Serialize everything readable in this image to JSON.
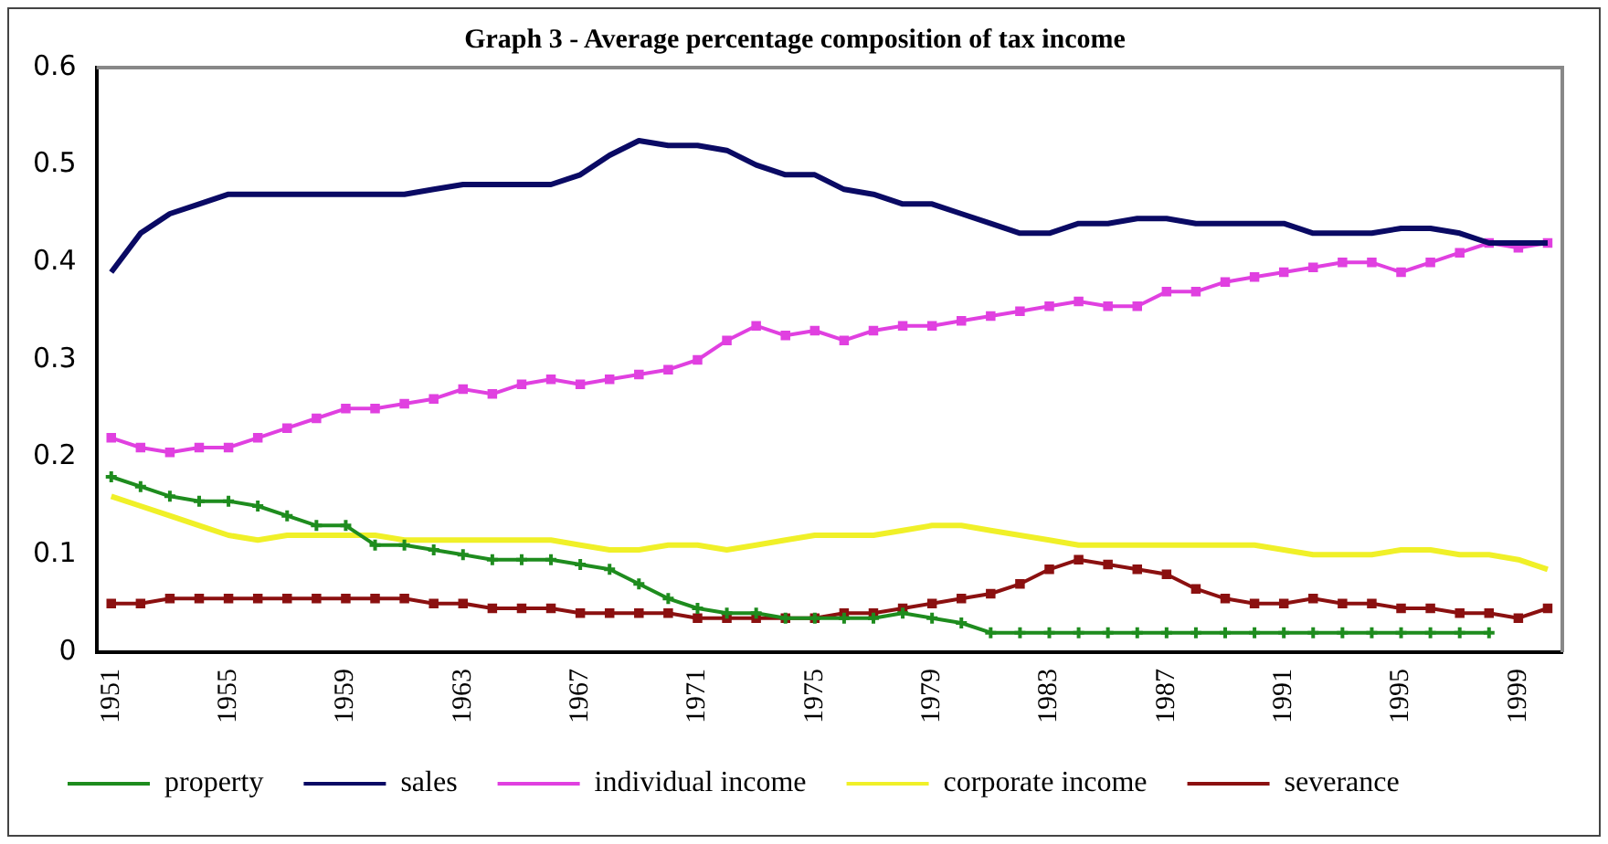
{
  "chart_data": {
    "type": "line",
    "title": "Graph 3 - Average percentage composition of tax income",
    "categories": [
      "1951",
      null,
      null,
      null,
      "1955",
      null,
      null,
      null,
      "1959",
      null,
      null,
      null,
      "1963",
      null,
      null,
      null,
      "1967",
      null,
      null,
      null,
      "1971",
      null,
      null,
      null,
      "1975",
      null,
      null,
      null,
      "1979",
      null,
      null,
      null,
      "1983",
      null,
      null,
      null,
      "1987",
      null,
      null,
      null,
      "1991",
      null,
      null,
      null,
      "1995",
      null,
      null,
      null,
      "1999",
      null
    ],
    "ylim": [
      0,
      0.6
    ],
    "yticks": [
      0,
      0.1,
      0.2,
      0.3,
      0.4,
      0.5,
      0.6
    ],
    "grid": false,
    "legend": "bottom",
    "series": [
      {
        "name": "property",
        "color": "#1e8c1e",
        "marker": "cross",
        "values": [
          0.18,
          0.17,
          0.16,
          0.155,
          0.155,
          0.15,
          0.14,
          0.13,
          0.13,
          0.11,
          0.11,
          0.105,
          0.1,
          0.095,
          0.095,
          0.095,
          0.09,
          0.085,
          0.07,
          0.055,
          0.045,
          0.04,
          0.04,
          0.035,
          0.035,
          0.035,
          0.035,
          0.04,
          0.035,
          0.03,
          0.02,
          0.02,
          0.02,
          0.02,
          0.02,
          0.02,
          0.02,
          0.02,
          0.02,
          0.02,
          0.02,
          0.02,
          0.02,
          0.02,
          0.02,
          0.02,
          0.02,
          0.02,
          null,
          null
        ]
      },
      {
        "name": "sales",
        "color": "#0a0a64",
        "marker": "none",
        "values": [
          0.39,
          0.43,
          0.45,
          0.46,
          0.47,
          0.47,
          0.47,
          0.47,
          0.47,
          0.47,
          0.47,
          0.475,
          0.48,
          0.48,
          0.48,
          0.48,
          0.49,
          0.51,
          0.525,
          0.52,
          0.52,
          0.515,
          0.5,
          0.49,
          0.49,
          0.475,
          0.47,
          0.46,
          0.46,
          0.45,
          0.44,
          0.43,
          0.43,
          0.44,
          0.44,
          0.445,
          0.445,
          0.44,
          0.44,
          0.44,
          0.44,
          0.43,
          0.43,
          0.43,
          0.435,
          0.435,
          0.43,
          0.42,
          0.42,
          0.42
        ]
      },
      {
        "name": "individual income",
        "color": "#e040e0",
        "marker": "square",
        "values": [
          0.22,
          0.21,
          0.205,
          0.21,
          0.21,
          0.22,
          0.23,
          0.24,
          0.25,
          0.25,
          0.255,
          0.26,
          0.27,
          0.265,
          0.275,
          0.28,
          0.275,
          0.28,
          0.285,
          0.29,
          0.3,
          0.32,
          0.335,
          0.325,
          0.33,
          0.32,
          0.33,
          0.335,
          0.335,
          0.34,
          0.345,
          0.35,
          0.355,
          0.36,
          0.355,
          0.355,
          0.37,
          0.37,
          0.38,
          0.385,
          0.39,
          0.395,
          0.4,
          0.4,
          0.39,
          0.4,
          0.41,
          0.42,
          0.415,
          0.42
        ]
      },
      {
        "name": "corporate income",
        "color": "#f0f028",
        "marker": "none",
        "values": [
          0.16,
          0.15,
          0.14,
          0.13,
          0.12,
          0.115,
          0.12,
          0.12,
          0.12,
          0.12,
          0.115,
          0.115,
          0.115,
          0.115,
          0.115,
          0.115,
          0.11,
          0.105,
          0.105,
          0.11,
          0.11,
          0.105,
          0.11,
          0.115,
          0.12,
          0.12,
          0.12,
          0.125,
          0.13,
          0.13,
          0.125,
          0.12,
          0.115,
          0.11,
          0.11,
          0.11,
          0.11,
          0.11,
          0.11,
          0.11,
          0.105,
          0.1,
          0.1,
          0.1,
          0.105,
          0.105,
          0.1,
          0.1,
          0.095,
          0.085
        ]
      },
      {
        "name": "severance",
        "color": "#8b1010",
        "marker": "square",
        "values": [
          0.05,
          0.05,
          0.055,
          0.055,
          0.055,
          0.055,
          0.055,
          0.055,
          0.055,
          0.055,
          0.055,
          0.05,
          0.05,
          0.045,
          0.045,
          0.045,
          0.04,
          0.04,
          0.04,
          0.04,
          0.035,
          0.035,
          0.035,
          0.035,
          0.035,
          0.04,
          0.04,
          0.045,
          0.05,
          0.055,
          0.06,
          0.07,
          0.085,
          0.095,
          0.09,
          0.085,
          0.08,
          0.065,
          0.055,
          0.05,
          0.05,
          0.055,
          0.05,
          0.05,
          0.045,
          0.045,
          0.04,
          0.04,
          0.035,
          0.045
        ]
      }
    ]
  }
}
